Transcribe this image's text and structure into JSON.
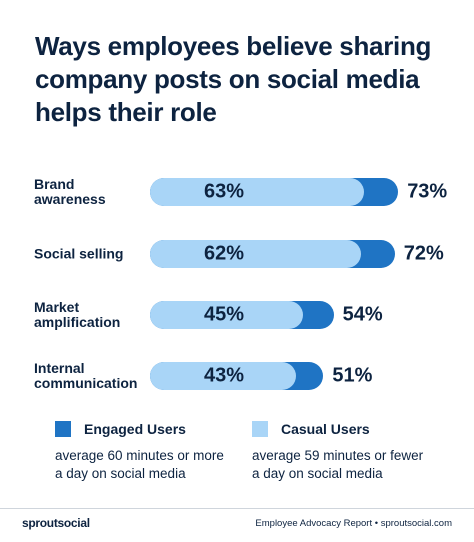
{
  "chart_data": {
    "type": "overlap-bar",
    "title": "Ways employees believe sharing company posts on social media helps their role",
    "categories": [
      "Brand awareness",
      "Social selling",
      "Market amplification",
      "Internal communication"
    ],
    "series": [
      {
        "name": "Engaged Users",
        "color": "#1f74c4",
        "values": [
          73,
          72,
          54,
          51
        ],
        "value_labels": [
          "73%",
          "72%",
          "54%",
          "51%"
        ],
        "description": "average 60 minutes or more a day on social media"
      },
      {
        "name": "Casual Users",
        "color": "#a9d5f7",
        "values": [
          63,
          62,
          45,
          43
        ],
        "value_labels": [
          "63%",
          "62%",
          "45%",
          "43%"
        ],
        "description": "average 59 minutes or fewer a day on social media"
      }
    ]
  },
  "footer": {
    "brand": "sproutsocial",
    "source": "Employee Advocacy Report • sproutsocial.com"
  }
}
